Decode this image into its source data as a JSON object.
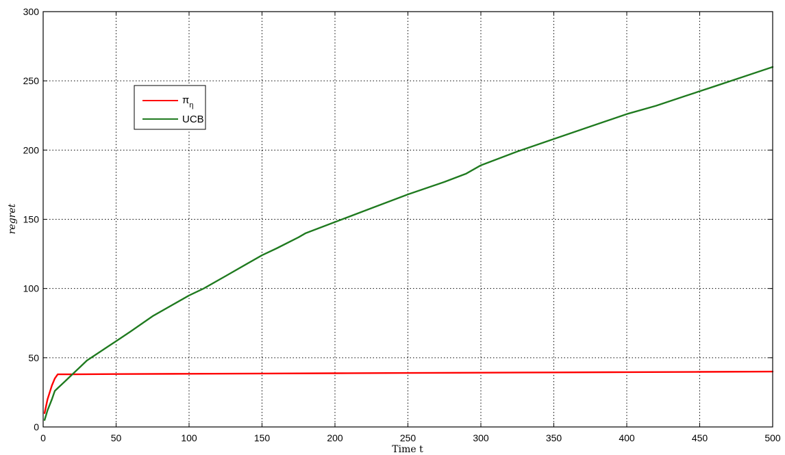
{
  "chart_data": {
    "type": "line",
    "xlabel": "Time t",
    "ylabel": "regret",
    "xlim": [
      0,
      500
    ],
    "ylim": [
      0,
      300
    ],
    "xticks": [
      0,
      50,
      100,
      150,
      200,
      250,
      300,
      350,
      400,
      450,
      500
    ],
    "yticks": [
      0,
      50,
      100,
      150,
      200,
      250,
      300
    ],
    "grid": true,
    "legend_position": "upper-left",
    "series": [
      {
        "name": "π_η",
        "legend_main": "π",
        "legend_sub": "η",
        "color": "#ff0000",
        "x": [
          1,
          3,
          6,
          8,
          10,
          20,
          50,
          100,
          150,
          200,
          250,
          300,
          350,
          400,
          450,
          500
        ],
        "y": [
          10,
          20,
          30,
          35,
          38,
          38,
          38.2,
          38.4,
          38.6,
          38.8,
          39,
          39.2,
          39.4,
          39.6,
          39.8,
          40
        ]
      },
      {
        "name": "UCB",
        "legend_main": "UCB",
        "color": "#1f7a1f",
        "x": [
          1,
          3,
          6,
          8,
          10,
          12,
          15,
          20,
          25,
          30,
          40,
          50,
          60,
          75,
          90,
          100,
          110,
          125,
          140,
          150,
          160,
          175,
          180,
          200,
          225,
          250,
          275,
          290,
          300,
          325,
          350,
          375,
          400,
          420,
          440,
          460,
          480,
          500
        ],
        "y": [
          5,
          12,
          20,
          26,
          28,
          30,
          33,
          38,
          43,
          48,
          55,
          62,
          69,
          80,
          89,
          95,
          100,
          109,
          118,
          124,
          129,
          137,
          140,
          148,
          158,
          168,
          177,
          183,
          189,
          199,
          208,
          217,
          226,
          232,
          239,
          246,
          253,
          260
        ]
      }
    ]
  }
}
